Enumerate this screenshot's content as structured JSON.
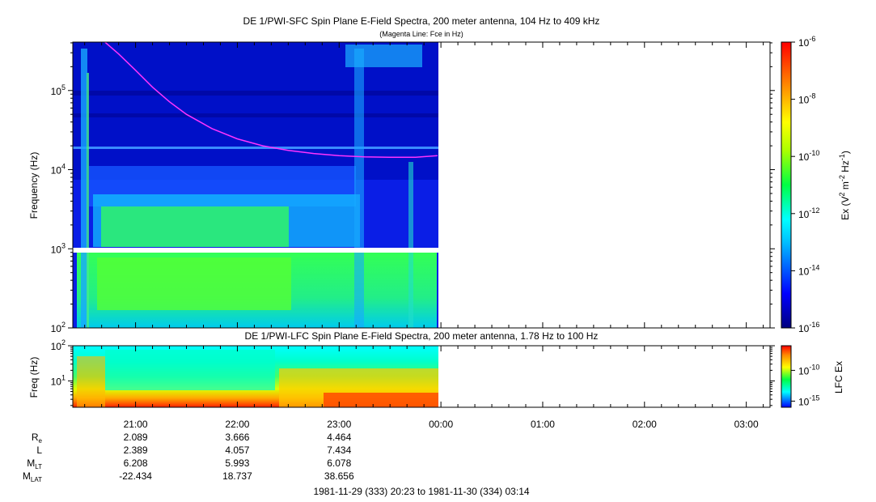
{
  "chart_data": [
    {
      "type": "heatmap",
      "title": "DE 1/PWI-SFC  Spin Plane E-Field Spectra, 200 meter antenna, 104 Hz to 409 kHz",
      "subtitle": "(Magenta Line: Fce in Hz)",
      "ylabel": "Frequency (Hz)",
      "yscale": "log",
      "ylim": [
        100,
        409000
      ],
      "yticks": [
        {
          "value": 100,
          "base": "10",
          "exp": "2"
        },
        {
          "value": 1000,
          "base": "10",
          "exp": "3"
        },
        {
          "value": 10000,
          "base": "10",
          "exp": "4"
        },
        {
          "value": 100000,
          "base": "10",
          "exp": "5"
        }
      ],
      "data_time_range": [
        "20:23",
        "23:59"
      ],
      "gap_band_hz": [
        900,
        1050
      ],
      "colorbar": {
        "label_parts": [
          "Ex (V",
          "2",
          " m",
          "-2",
          " Hz",
          "-1",
          ")"
        ],
        "scale": "log",
        "range": [
          1e-16,
          1e-06
        ],
        "ticks": [
          {
            "value": 1e-06,
            "base": "10",
            "exp": "-6"
          },
          {
            "value": 1e-08,
            "base": "10",
            "exp": "-8"
          },
          {
            "value": 1e-10,
            "base": "10",
            "exp": "-10"
          },
          {
            "value": 1e-12,
            "base": "10",
            "exp": "-12"
          },
          {
            "value": 1e-14,
            "base": "10",
            "exp": "-14"
          },
          {
            "value": 1e-16,
            "base": "10",
            "exp": "-16"
          }
        ]
      },
      "fce_line": {
        "color": "#ff33ff",
        "time": [
          "20:42",
          "20:50",
          "21:00",
          "21:10",
          "21:20",
          "21:30",
          "21:45",
          "22:00",
          "22:15",
          "22:30",
          "22:45",
          "23:00",
          "23:15",
          "23:30",
          "23:45",
          "23:58"
        ],
        "freq_hz": [
          409000,
          290000,
          180000,
          110000,
          72000,
          50000,
          33000,
          24500,
          20000,
          17500,
          16000,
          15000,
          14500,
          14300,
          14300,
          15000
        ]
      }
    },
    {
      "type": "heatmap",
      "title": "DE 1/PWI-LFC  Spin Plane E-Field Spectra, 200 meter antenna, 1.78 Hz to 100 Hz",
      "ylabel": "Freq (Hz)",
      "yscale": "log",
      "ylim": [
        1.78,
        100
      ],
      "yticks": [
        {
          "value": 10,
          "base": "10",
          "exp": "1"
        },
        {
          "value": 100,
          "base": "10",
          "exp": "2"
        }
      ],
      "data_time_range": [
        "20:23",
        "23:59"
      ],
      "colorbar": {
        "label": "LFC Ex",
        "scale": "log",
        "range": [
          1e-16,
          1e-06
        ],
        "ticks": [
          {
            "value": 1e-10,
            "base": "10",
            "exp": "-10"
          },
          {
            "value": 1e-15,
            "base": "10",
            "exp": "-15"
          }
        ]
      }
    }
  ],
  "time_axis": {
    "start": "20:23",
    "end": "03:14",
    "ticks": [
      {
        "time": "21:00",
        "label": "21:00"
      },
      {
        "time": "22:00",
        "label": "22:00"
      },
      {
        "time": "23:00",
        "label": "23:00"
      },
      {
        "time": "24:00",
        "label": "00:00"
      },
      {
        "time": "25:00",
        "label": "01:00"
      },
      {
        "time": "26:00",
        "label": "02:00"
      },
      {
        "time": "27:00",
        "label": "03:00"
      }
    ]
  },
  "ephemeris": {
    "rows": [
      {
        "label": "R",
        "sub": "e",
        "values": [
          "2.089",
          "3.666",
          "4.464"
        ]
      },
      {
        "label": "L",
        "sub": "",
        "values": [
          "2.389",
          "4.057",
          "7.434"
        ]
      },
      {
        "label": "M",
        "sub": "LT",
        "values": [
          "6.208",
          "5.993",
          "6.078"
        ]
      },
      {
        "label": "M",
        "sub": "LAT",
        "values": [
          "-22.434",
          "18.737",
          "38.656"
        ]
      }
    ]
  },
  "time_range_label": "1981-11-29 (333) 20:23 to 1981-11-30 (334) 03:14"
}
